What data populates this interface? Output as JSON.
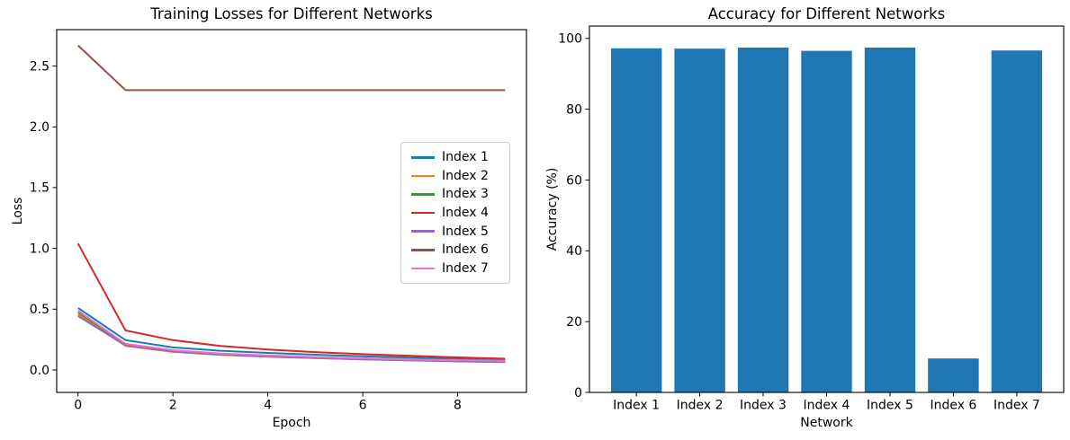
{
  "figure_background": "#ffffff",
  "chart_data": [
    {
      "id": "training_losses",
      "type": "line",
      "title": "Training Losses for Different Networks",
      "xlabel": "Epoch",
      "ylabel": "Loss",
      "x": [
        0,
        1,
        2,
        3,
        4,
        5,
        6,
        7,
        8,
        9
      ],
      "xticks": [
        0,
        2,
        4,
        6,
        8
      ],
      "yticks": [
        0.0,
        0.5,
        1.0,
        1.5,
        2.0,
        2.5
      ],
      "xlim": [
        -0.45,
        9.45
      ],
      "ylim": [
        -0.185,
        2.8
      ],
      "grid": false,
      "legend_position": "center-right",
      "series": [
        {
          "name": "Index 1",
          "color": "#1f77b4",
          "values": [
            0.51,
            0.245,
            0.185,
            0.158,
            0.14,
            0.125,
            0.112,
            0.101,
            0.092,
            0.085
          ]
        },
        {
          "name": "Index 2",
          "color": "#ff7f0e",
          "values": [
            0.458,
            0.198,
            0.148,
            0.124,
            0.109,
            0.097,
            0.088,
            0.08,
            0.074,
            0.069
          ]
        },
        {
          "name": "Index 3",
          "color": "#2ca02c",
          "values": [
            0.475,
            0.208,
            0.157,
            0.132,
            0.116,
            0.104,
            0.094,
            0.086,
            0.079,
            0.073
          ]
        },
        {
          "name": "Index 4",
          "color": "#d62728",
          "values": [
            1.04,
            0.325,
            0.245,
            0.198,
            0.168,
            0.147,
            0.13,
            0.116,
            0.103,
            0.092
          ]
        },
        {
          "name": "Index 5",
          "color": "#9467bd",
          "values": [
            0.443,
            0.203,
            0.151,
            0.126,
            0.11,
            0.098,
            0.087,
            0.078,
            0.07,
            0.064
          ]
        },
        {
          "name": "Index 6",
          "color": "#8c564b",
          "values": [
            2.67,
            2.302,
            2.302,
            2.302,
            2.302,
            2.302,
            2.302,
            2.302,
            2.302,
            2.302
          ]
        },
        {
          "name": "Index 7",
          "color": "#e377c2",
          "values": [
            0.487,
            0.215,
            0.162,
            0.136,
            0.12,
            0.106,
            0.096,
            0.087,
            0.08,
            0.075
          ]
        }
      ]
    },
    {
      "id": "accuracy",
      "type": "bar",
      "title": "Accuracy for Different Networks",
      "xlabel": "Network",
      "ylabel": "Accuracy (%)",
      "categories": [
        "Index 1",
        "Index 2",
        "Index 3",
        "Index 4",
        "Index 5",
        "Index 6",
        "Index 7"
      ],
      "values": [
        97.2,
        97.1,
        97.4,
        96.5,
        97.4,
        9.6,
        96.6
      ],
      "yticks": [
        0,
        20,
        40,
        60,
        80,
        100
      ],
      "xlim": [
        -0.74,
        6.74
      ],
      "ylim": [
        0,
        103.5
      ],
      "bar_width": 0.8,
      "bar_color": "#1f77b4",
      "grid": false
    }
  ]
}
